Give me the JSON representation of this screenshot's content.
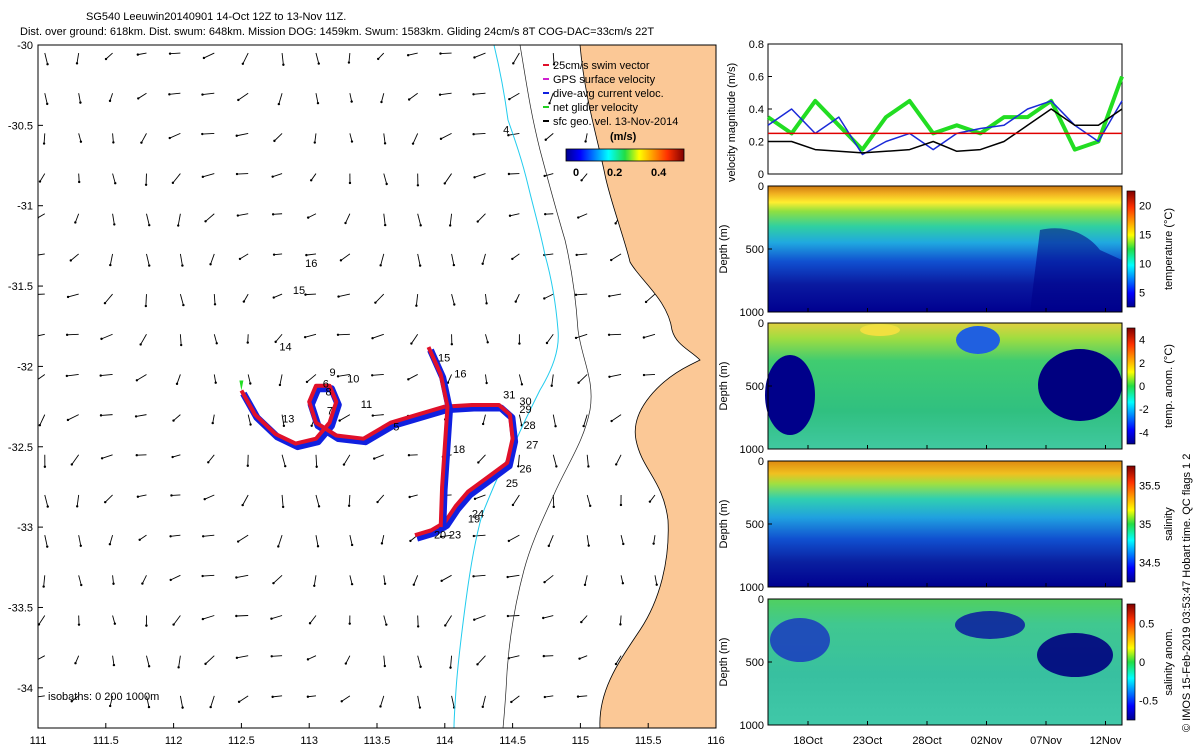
{
  "title_line1": "SG540 Leeuwin20140901 14-Oct 12Z to 13-Nov 11Z.",
  "title_line2": "Dist. over ground: 618km. Dist. swum: 648km. Mission DOG: 1459km. Swum: 1583km. Gliding 24cm/s 8T COG-DAC=33cm/s 22T",
  "legend": {
    "items": [
      {
        "label": "25cm/s swim vector",
        "color": "#e0102a"
      },
      {
        "label": "GPS surface velocity",
        "color": "#d020d0"
      },
      {
        "label": "dive-avg current veloc.",
        "color": "#1020e0"
      },
      {
        "label": "net glider velocity",
        "color": "#20d020"
      },
      {
        "label": "sfc geo. vel. 13-Nov-2014",
        "color": "#000000"
      }
    ],
    "unit": "(m/s)",
    "colorbar_ticks": [
      "0",
      "0.2",
      "0.4"
    ]
  },
  "isobaths_note": "isobaths: 0   200   1000m",
  "side_note": "© IMOS 15-Feb-2019 03:53:47 Hobart time. QC flags 1  2",
  "colors": {
    "land": "#fbc896",
    "isobath_200": "#22ccee",
    "track_red": "#e0102a",
    "track_blue": "#1020e0",
    "speed_line": "#e00000",
    "glider_green": "#22dd22"
  },
  "chart_data": [
    {
      "type": "scatter",
      "name": "map",
      "xlim": [
        111,
        116
      ],
      "ylim": [
        -34.25,
        -30
      ],
      "x_ticks": [
        "111",
        "111.5",
        "112",
        "112.5",
        "113",
        "113.5",
        "114",
        "114.5",
        "115",
        "115.5",
        "116"
      ],
      "y_ticks": [
        "-30",
        "-30.5",
        "-31",
        "-31.5",
        "-32",
        "-32.5",
        "-33",
        "-33.5",
        "-34"
      ],
      "track": [
        [
          112.5,
          -32.15
        ],
        [
          112.6,
          -32.3
        ],
        [
          112.75,
          -32.42
        ],
        [
          112.9,
          -32.48
        ],
        [
          113.05,
          -32.45
        ],
        [
          113.15,
          -32.35
        ],
        [
          113.2,
          -32.22
        ],
        [
          113.15,
          -32.12
        ],
        [
          113.05,
          -32.12
        ],
        [
          113.0,
          -32.22
        ],
        [
          113.05,
          -32.35
        ],
        [
          113.2,
          -32.43
        ],
        [
          113.4,
          -32.45
        ],
        [
          113.6,
          -32.35
        ],
        [
          113.8,
          -32.3
        ],
        [
          114.0,
          -32.25
        ],
        [
          114.2,
          -32.24
        ],
        [
          114.4,
          -32.24
        ],
        [
          114.48,
          -32.3
        ],
        [
          114.5,
          -32.45
        ],
        [
          114.46,
          -32.6
        ],
        [
          114.3,
          -32.7
        ],
        [
          114.17,
          -32.78
        ],
        [
          114.08,
          -32.87
        ],
        [
          114.0,
          -32.97
        ],
        [
          113.9,
          -33.02
        ],
        [
          113.78,
          -33.05
        ]
      ],
      "track2": [
        [
          113.88,
          -31.88
        ],
        [
          113.97,
          -32.05
        ],
        [
          114.02,
          -32.25
        ],
        [
          114.0,
          -32.5
        ],
        [
          113.98,
          -32.75
        ],
        [
          113.97,
          -33.0
        ]
      ],
      "day_labels": [
        {
          "t": "4",
          "x": 114.43,
          "y": -30.55
        },
        {
          "t": "16",
          "x": 112.97,
          "y": -31.38
        },
        {
          "t": "15",
          "x": 112.88,
          "y": -31.55
        },
        {
          "t": "14",
          "x": 112.78,
          "y": -31.9
        },
        {
          "t": "13",
          "x": 112.8,
          "y": -32.35
        },
        {
          "t": "9",
          "x": 113.15,
          "y": -32.06
        },
        {
          "t": "10",
          "x": 113.28,
          "y": -32.1
        },
        {
          "t": "6",
          "x": 113.1,
          "y": -32.13
        },
        {
          "t": "8",
          "x": 113.12,
          "y": -32.18
        },
        {
          "t": "7",
          "x": 113.13,
          "y": -32.3
        },
        {
          "t": "11",
          "x": 113.38,
          "y": -32.26
        },
        {
          "t": "5",
          "x": 113.62,
          "y": -32.4
        },
        {
          "t": "15",
          "x": 113.95,
          "y": -31.97
        },
        {
          "t": "16",
          "x": 114.07,
          "y": -32.07
        },
        {
          "t": "31",
          "x": 114.43,
          "y": -32.2
        },
        {
          "t": "30",
          "x": 114.55,
          "y": -32.24
        },
        {
          "t": "29",
          "x": 114.55,
          "y": -32.29
        },
        {
          "t": "28",
          "x": 114.58,
          "y": -32.39
        },
        {
          "t": "27",
          "x": 114.6,
          "y": -32.51
        },
        {
          "t": "18",
          "x": 114.06,
          "y": -32.54
        },
        {
          "t": "26",
          "x": 114.55,
          "y": -32.66
        },
        {
          "t": "25",
          "x": 114.45,
          "y": -32.75
        },
        {
          "t": "24",
          "x": 114.2,
          "y": -32.94
        },
        {
          "t": "19",
          "x": 114.17,
          "y": -32.97
        },
        {
          "t": "23",
          "x": 114.03,
          "y": -33.07
        },
        {
          "t": "20",
          "x": 113.92,
          "y": -33.07
        }
      ]
    },
    {
      "type": "line",
      "name": "velocity",
      "ylabel": "velocity magnitude (m/s)",
      "y_ticks": [
        "0",
        "0.2",
        "0.4",
        "0.6",
        "0.8"
      ],
      "ylim": [
        0,
        0.8
      ],
      "x": [
        14,
        16,
        18,
        20,
        22,
        24,
        26,
        28,
        30,
        32,
        34,
        36,
        38,
        40,
        42,
        44
      ],
      "series": [
        {
          "name": "swim",
          "values": [
            0.25,
            0.25,
            0.25,
            0.25,
            0.25,
            0.25,
            0.25,
            0.25,
            0.25,
            0.25,
            0.25,
            0.25,
            0.25,
            0.25,
            0.25,
            0.25
          ]
        },
        {
          "name": "dac",
          "values": [
            0.3,
            0.4,
            0.25,
            0.35,
            0.12,
            0.2,
            0.25,
            0.15,
            0.25,
            0.28,
            0.3,
            0.4,
            0.45,
            0.3,
            0.2,
            0.45
          ]
        },
        {
          "name": "sfc",
          "values": [
            0.2,
            0.2,
            0.15,
            0.14,
            0.13,
            0.14,
            0.15,
            0.2,
            0.14,
            0.15,
            0.2,
            0.3,
            0.4,
            0.3,
            0.3,
            0.4
          ]
        },
        {
          "name": "net",
          "values": [
            0.35,
            0.25,
            0.45,
            0.3,
            0.15,
            0.35,
            0.45,
            0.25,
            0.3,
            0.25,
            0.35,
            0.35,
            0.45,
            0.15,
            0.2,
            0.6
          ]
        }
      ]
    },
    {
      "type": "heatmap",
      "name": "temperature",
      "ylabel": "Depth (m)",
      "cb_label": "temperature (°C)",
      "cb_ticks": [
        "5",
        "10",
        "15",
        "20"
      ],
      "ylim": [
        1000,
        0
      ]
    },
    {
      "type": "heatmap",
      "name": "temp_anom",
      "ylabel": "Depth (m)",
      "cb_label": "temp. anom. (°C)",
      "cb_ticks": [
        "-4",
        "-2",
        "0",
        "2",
        "4"
      ],
      "ylim": [
        1000,
        0
      ]
    },
    {
      "type": "heatmap",
      "name": "salinity",
      "ylabel": "Depth (m)",
      "cb_label": "salinity",
      "cb_ticks": [
        "34.5",
        "35",
        "35.5"
      ],
      "ylim": [
        1000,
        0
      ]
    },
    {
      "type": "heatmap",
      "name": "salinity_anom",
      "ylabel": "Depth (m)",
      "cb_label": "salinity anom.",
      "cb_ticks": [
        "-0.5",
        "0",
        "0.5"
      ],
      "ylim": [
        1000,
        0
      ],
      "x_ticks": [
        "18Oct",
        "23Oct",
        "28Oct",
        "02Nov",
        "07Nov",
        "12Nov"
      ]
    }
  ],
  "depth_ticks": [
    "0",
    "500",
    "1000"
  ]
}
